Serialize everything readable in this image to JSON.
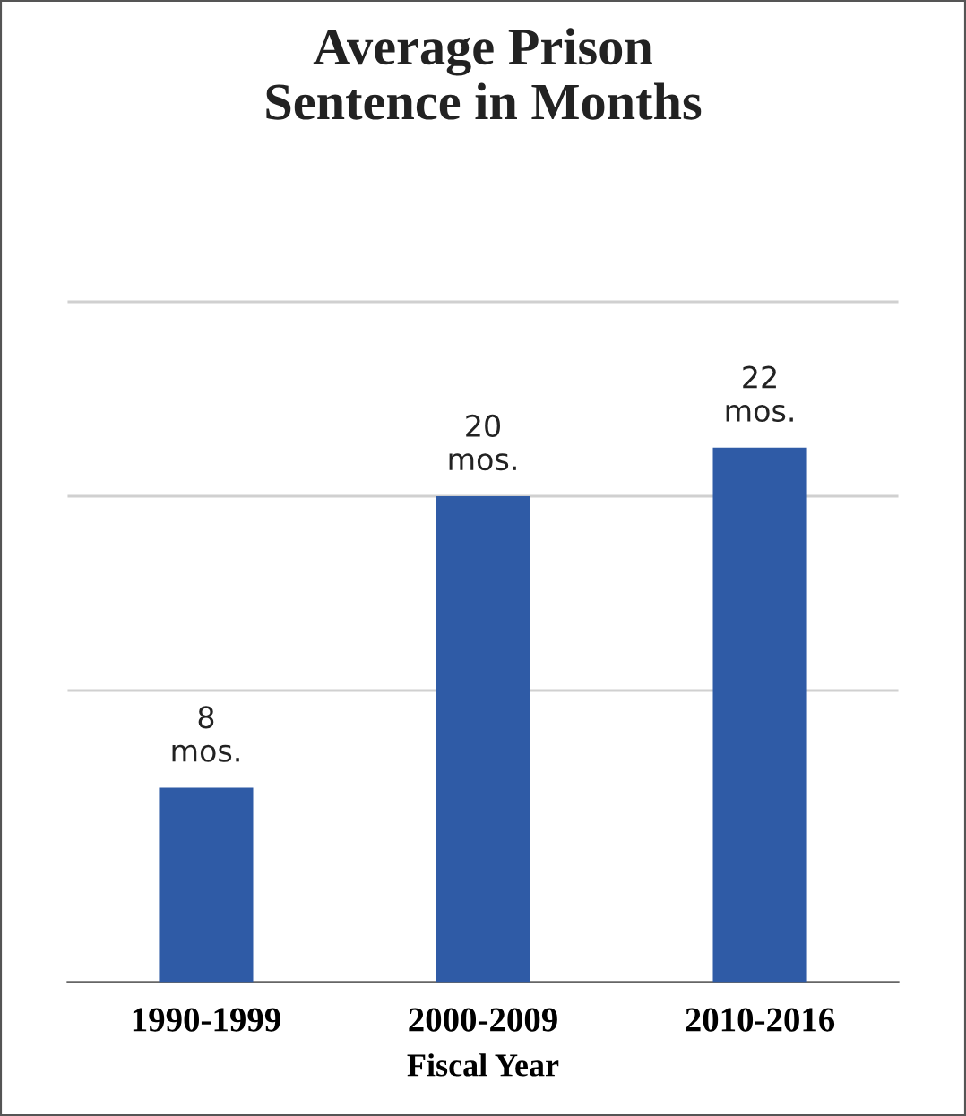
{
  "chart_data": {
    "type": "bar",
    "title": "Average Prison\nSentence in Months",
    "xlabel": "Fiscal Year",
    "categories": [
      "1990-1999",
      "2000-2009",
      "2010-2016"
    ],
    "values": [
      8,
      20,
      22
    ],
    "value_labels": [
      "8\nmos.",
      "20\nmos.",
      "22\nmos."
    ],
    "color": "#2f5ba6",
    "ref_lines": [
      {
        "axis": "y",
        "value": 12,
        "label": null,
        "color": "#d0d0d0"
      },
      {
        "axis": "y",
        "value": 20,
        "label": null,
        "color": "#d0d0d0"
      },
      {
        "axis": "y",
        "value": 28,
        "label": null,
        "color": "#d0d0d0"
      }
    ]
  }
}
